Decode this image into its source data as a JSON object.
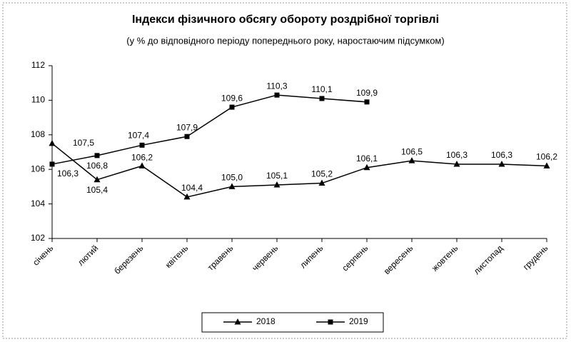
{
  "chart_data": {
    "type": "line",
    "title": "Індекси фізичного обсягу обороту роздрібної торгівлі",
    "subtitle": "(у % до відповідного періоду попереднього року, наростаючим підсумком)",
    "categories": [
      "січень",
      "лютий",
      "березень",
      "квітень",
      "травень",
      "червень",
      "липень",
      "серпень",
      "вересень",
      "жовтень",
      "листопад",
      "грудень"
    ],
    "series": [
      {
        "name": "2018",
        "color": "#000000",
        "marker": "triangle",
        "values": [
          107.5,
          105.4,
          106.2,
          104.4,
          105.0,
          105.1,
          105.2,
          106.1,
          106.5,
          106.3,
          106.3,
          106.2
        ],
        "value_labels": [
          "107,5",
          "105,4",
          "106,2",
          "104,4",
          "105,0",
          "105,1",
          "105,2",
          "106,1",
          "106,5",
          "106,3",
          "106,3",
          "106,2"
        ]
      },
      {
        "name": "2019",
        "color": "#000000",
        "marker": "square",
        "values": [
          106.3,
          106.8,
          107.4,
          107.9,
          109.6,
          110.3,
          110.1,
          109.9,
          null,
          null,
          null,
          null
        ],
        "value_labels": [
          "106,3",
          "106,8",
          "107,4",
          "107,9",
          "109,6",
          "110,3",
          "110,1",
          "109,9",
          null,
          null,
          null,
          null
        ]
      }
    ],
    "ylim": [
      102,
      112
    ],
    "yticks": [
      102,
      104,
      106,
      108,
      110,
      112
    ],
    "grid": false,
    "legend": "bottom"
  }
}
